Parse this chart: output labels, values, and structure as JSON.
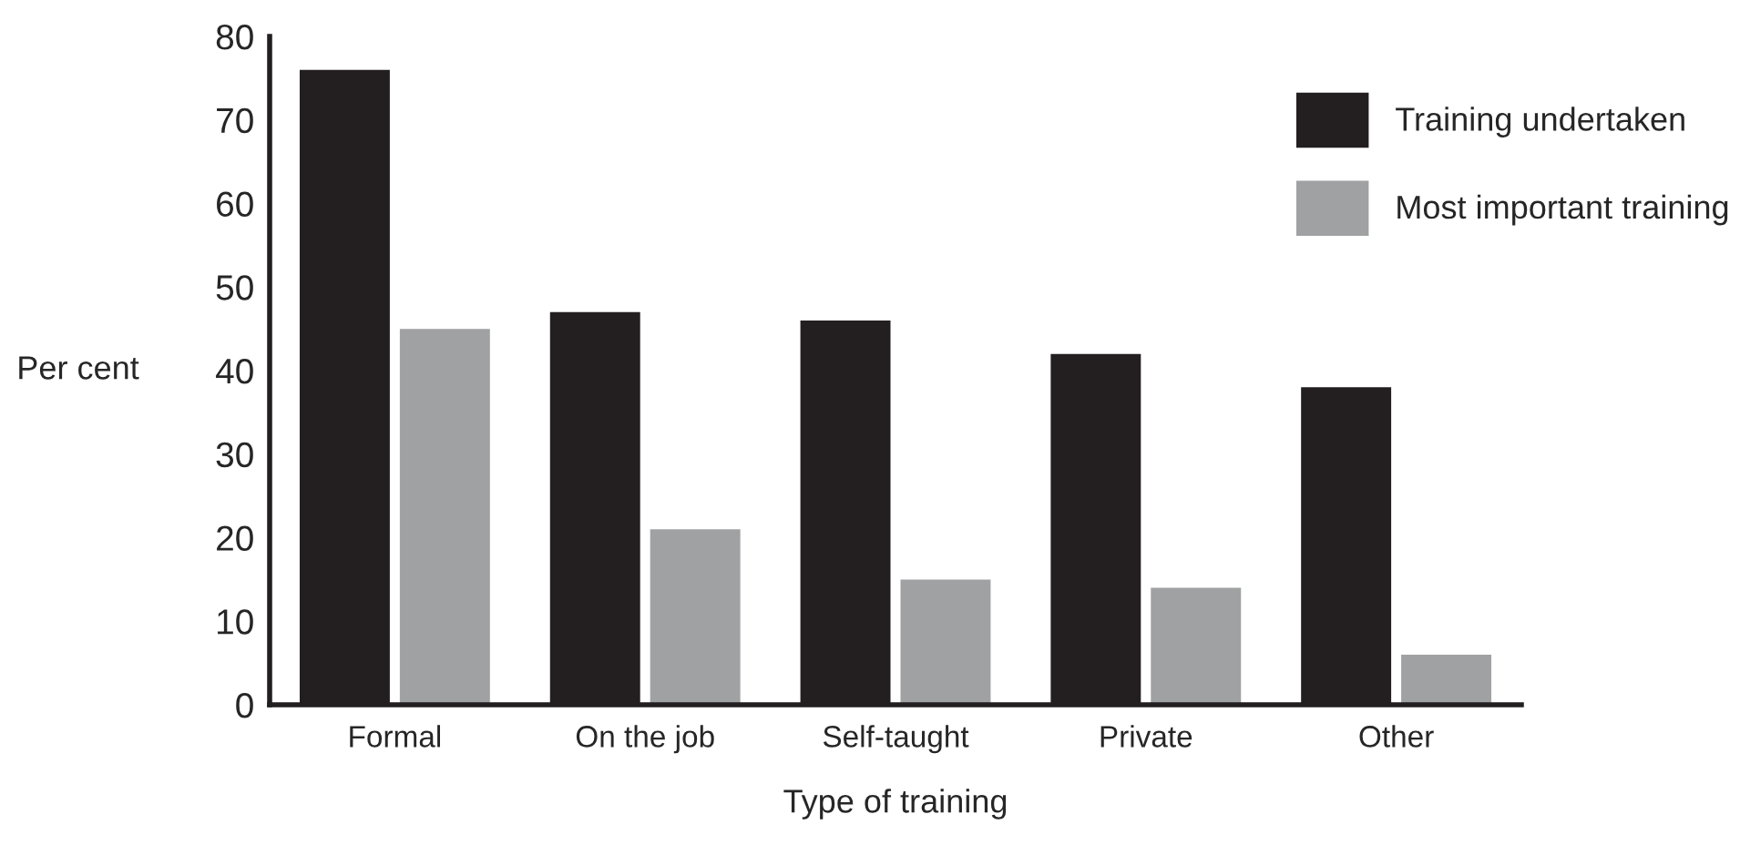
{
  "chart_data": {
    "type": "bar",
    "xlabel": "Type of training",
    "ylabel": "Per cent",
    "categories": [
      "Formal",
      "On the job",
      "Self-taught",
      "Private",
      "Other"
    ],
    "series": [
      {
        "name": "Training undertaken",
        "color": "#231f20",
        "values": [
          76,
          47,
          46,
          42,
          38
        ]
      },
      {
        "name": "Most important training",
        "color": "#a0a1a3",
        "values": [
          45,
          21,
          15,
          14,
          6
        ]
      }
    ],
    "ylim": [
      0,
      80
    ],
    "yticks": [
      0,
      10,
      20,
      30,
      40,
      50,
      60,
      70,
      80
    ],
    "grid": false,
    "legend": "top right"
  }
}
